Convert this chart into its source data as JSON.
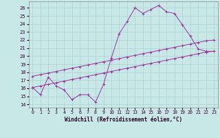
{
  "xlabel": "Windchill (Refroidissement éolien,°C)",
  "bg_color": "#c8e8e8",
  "line_color": "#993399",
  "grid_color": "#aad0d0",
  "x_ticks": [
    0,
    1,
    2,
    3,
    4,
    5,
    6,
    7,
    8,
    9,
    10,
    11,
    12,
    13,
    14,
    15,
    16,
    17,
    18,
    19,
    20,
    21,
    22,
    23
  ],
  "y_ticks": [
    14,
    15,
    16,
    17,
    18,
    19,
    20,
    21,
    22,
    23,
    24,
    25,
    26
  ],
  "ylim": [
    13.6,
    26.8
  ],
  "xlim": [
    -0.5,
    23.5
  ],
  "line1_x": [
    0,
    1,
    2,
    3,
    4,
    5,
    6,
    7,
    8,
    9,
    10,
    11,
    12,
    13,
    14,
    15,
    16,
    17,
    18,
    19,
    20,
    21,
    22,
    23
  ],
  "line1_y": [
    16.1,
    15.2,
    17.4,
    16.3,
    15.8,
    14.6,
    15.2,
    15.2,
    14.3,
    16.5,
    19.8,
    22.8,
    24.3,
    26.0,
    25.3,
    25.8,
    26.3,
    25.5,
    25.3,
    23.9,
    22.5,
    20.9,
    20.6,
    20.6
  ],
  "line2_x": [
    0,
    1,
    2,
    3,
    4,
    5,
    6,
    7,
    8,
    9,
    10,
    11,
    12,
    13,
    14,
    15,
    16,
    17,
    18,
    19,
    20,
    21,
    22,
    23
  ],
  "line2_y": [
    17.5,
    17.7,
    17.9,
    18.1,
    18.3,
    18.5,
    18.7,
    18.9,
    19.1,
    19.3,
    19.5,
    19.7,
    19.9,
    20.1,
    20.3,
    20.5,
    20.7,
    20.9,
    21.1,
    21.3,
    21.5,
    21.7,
    21.9,
    22.0
  ],
  "line3_x": [
    0,
    1,
    2,
    3,
    4,
    5,
    6,
    7,
    8,
    9,
    10,
    11,
    12,
    13,
    14,
    15,
    16,
    17,
    18,
    19,
    20,
    21,
    22,
    23
  ],
  "line3_y": [
    16.1,
    16.3,
    16.5,
    16.7,
    16.9,
    17.1,
    17.3,
    17.5,
    17.7,
    17.9,
    18.1,
    18.3,
    18.5,
    18.7,
    18.9,
    19.1,
    19.3,
    19.5,
    19.7,
    19.9,
    20.1,
    20.3,
    20.5,
    20.6
  ]
}
